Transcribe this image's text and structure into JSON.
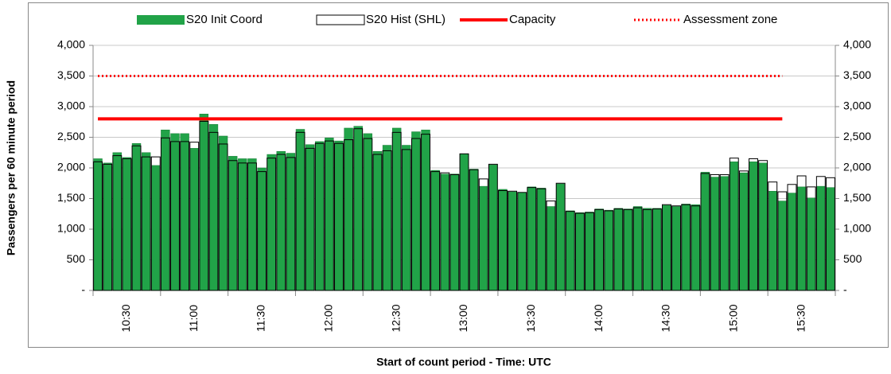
{
  "chart_data": {
    "type": "bar",
    "y_label": "Passengers per 60 minute period",
    "x_label": "Start of count period - Time: UTC",
    "categories": [
      "10:30",
      null,
      null,
      null,
      null,
      null,
      null,
      "11:00",
      null,
      null,
      null,
      null,
      null,
      null,
      "11:30",
      null,
      null,
      null,
      null,
      null,
      null,
      "12:00",
      null,
      null,
      null,
      null,
      null,
      null,
      "12:30",
      null,
      null,
      null,
      null,
      null,
      null,
      "13:00",
      null,
      null,
      null,
      null,
      null,
      null,
      "13:30",
      null,
      null,
      null,
      null,
      null,
      null,
      "14:00",
      null,
      null,
      null,
      null,
      null,
      null,
      "14:30",
      null,
      null,
      null,
      null,
      null,
      null,
      "15:00",
      null,
      null,
      null,
      null,
      null,
      null,
      "15:30",
      null,
      null,
      null,
      null,
      null,
      null
    ],
    "series": [
      {
        "name": "S20 Init Coord",
        "color": "#21a348",
        "style": "filled",
        "values": [
          2150,
          2080,
          2250,
          2170,
          2400,
          2250,
          2040,
          2620,
          2560,
          2560,
          2320,
          2880,
          2710,
          2520,
          2190,
          2150,
          2150,
          2000,
          2220,
          2270,
          2240,
          2630,
          2380,
          2430,
          2490,
          2440,
          2650,
          2680,
          2560,
          2270,
          2370,
          2650,
          2370,
          2590,
          2620,
          1960,
          1900,
          1900,
          2230,
          1980,
          1700,
          2050,
          1650,
          1610,
          1600,
          1690,
          1670,
          1370,
          1740,
          1300,
          1270,
          1280,
          1330,
          1310,
          1340,
          1330,
          1370,
          1340,
          1340,
          1390,
          1370,
          1410,
          1400,
          1930,
          1850,
          1860,
          2100,
          1920,
          2100,
          2080,
          1620,
          1460,
          1590,
          1690,
          1510,
          1700,
          1680
        ]
      },
      {
        "name": "S20 Hist (SHL)",
        "color": "#000000",
        "style": "outline",
        "values": [
          2100,
          2060,
          2200,
          2150,
          2360,
          2180,
          2180,
          2490,
          2430,
          2430,
          2420,
          2760,
          2580,
          2390,
          2120,
          2080,
          2080,
          1940,
          2160,
          2220,
          2170,
          2580,
          2320,
          2400,
          2440,
          2400,
          2460,
          2640,
          2480,
          2220,
          2280,
          2580,
          2300,
          2480,
          2550,
          1940,
          1920,
          1890,
          2230,
          1970,
          1820,
          2060,
          1630,
          1620,
          1600,
          1680,
          1660,
          1460,
          1750,
          1290,
          1260,
          1270,
          1320,
          1300,
          1330,
          1320,
          1350,
          1320,
          1330,
          1400,
          1380,
          1400,
          1380,
          1910,
          1890,
          1890,
          2160,
          1950,
          2150,
          2120,
          1770,
          1610,
          1730,
          1870,
          1690,
          1860,
          1840
        ]
      }
    ],
    "reference_lines": [
      {
        "name": "Capacity",
        "color": "#ff0000",
        "style": "solid",
        "value": 2800
      },
      {
        "name": "Assessment zone",
        "color": "#ff0000",
        "style": "dotted",
        "value": 3500
      }
    ],
    "ylim": [
      0,
      4000
    ],
    "yticks": [
      {
        "value": 0,
        "label": "-"
      },
      500,
      {
        "value": 1000,
        "label": "1,000"
      },
      {
        "value": 1500,
        "label": "1,500"
      },
      {
        "value": 2000,
        "label": "2,000"
      },
      {
        "value": 2500,
        "label": "2,500"
      },
      {
        "value": 3000,
        "label": "3,000"
      },
      {
        "value": 3500,
        "label": "3,500"
      },
      {
        "value": 4000,
        "label": "4,000"
      }
    ],
    "grid": true
  }
}
